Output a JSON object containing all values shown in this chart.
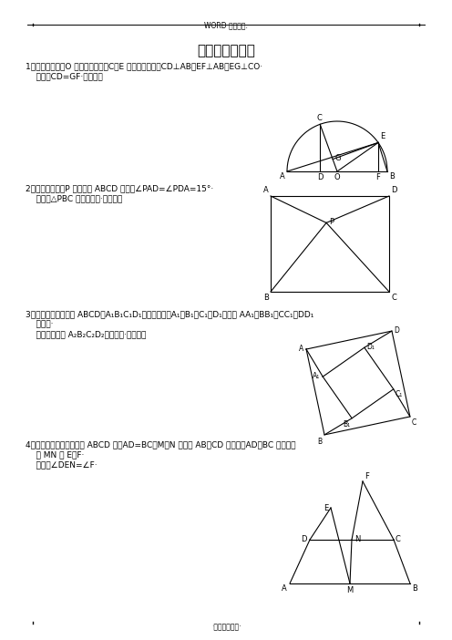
{
  "title": "经典难题（一）",
  "header_text": "WORD 格式整理.",
  "footer_text": "·专业知识分享·",
  "bg_color": "#ffffff",
  "p1_line1": "1、已知：如图，O 是半圆的圆心，C、E 是圆上的两点，CD⊥AB，EF⊥AB，EG⊥CO·",
  "p1_line2": "    求证：CD=GF·（初二）",
  "p2_line1": "2、已知：如图，P 是正方形 ABCD 内点，∠PAD=∠PDA=15°·",
  "p2_line2": "    求证：△PBC 是正三角形·（初二）",
  "p3_line1": "3、如图，已知四边形 ABCD、A₁B₁C₁D₁都是正方形，A₁、B₁、C₁、D₁分别是 AA₁、BB₁、CC₁、DD₁",
  "p3_line2": "    的中点·",
  "p3_line3": "    求证：四边形 A₂B₂C₂D₂是正方形·（初二）",
  "p4_line1": "4、已知：如图，在四边形 ABCD 中，AD=BC，M、N 分别是 AB、CD 的中点，AD、BC 的延长线",
  "p4_line2": "    交 MN 于 E、F·",
  "p4_line3": "    求证：∠DEN=∠F·"
}
